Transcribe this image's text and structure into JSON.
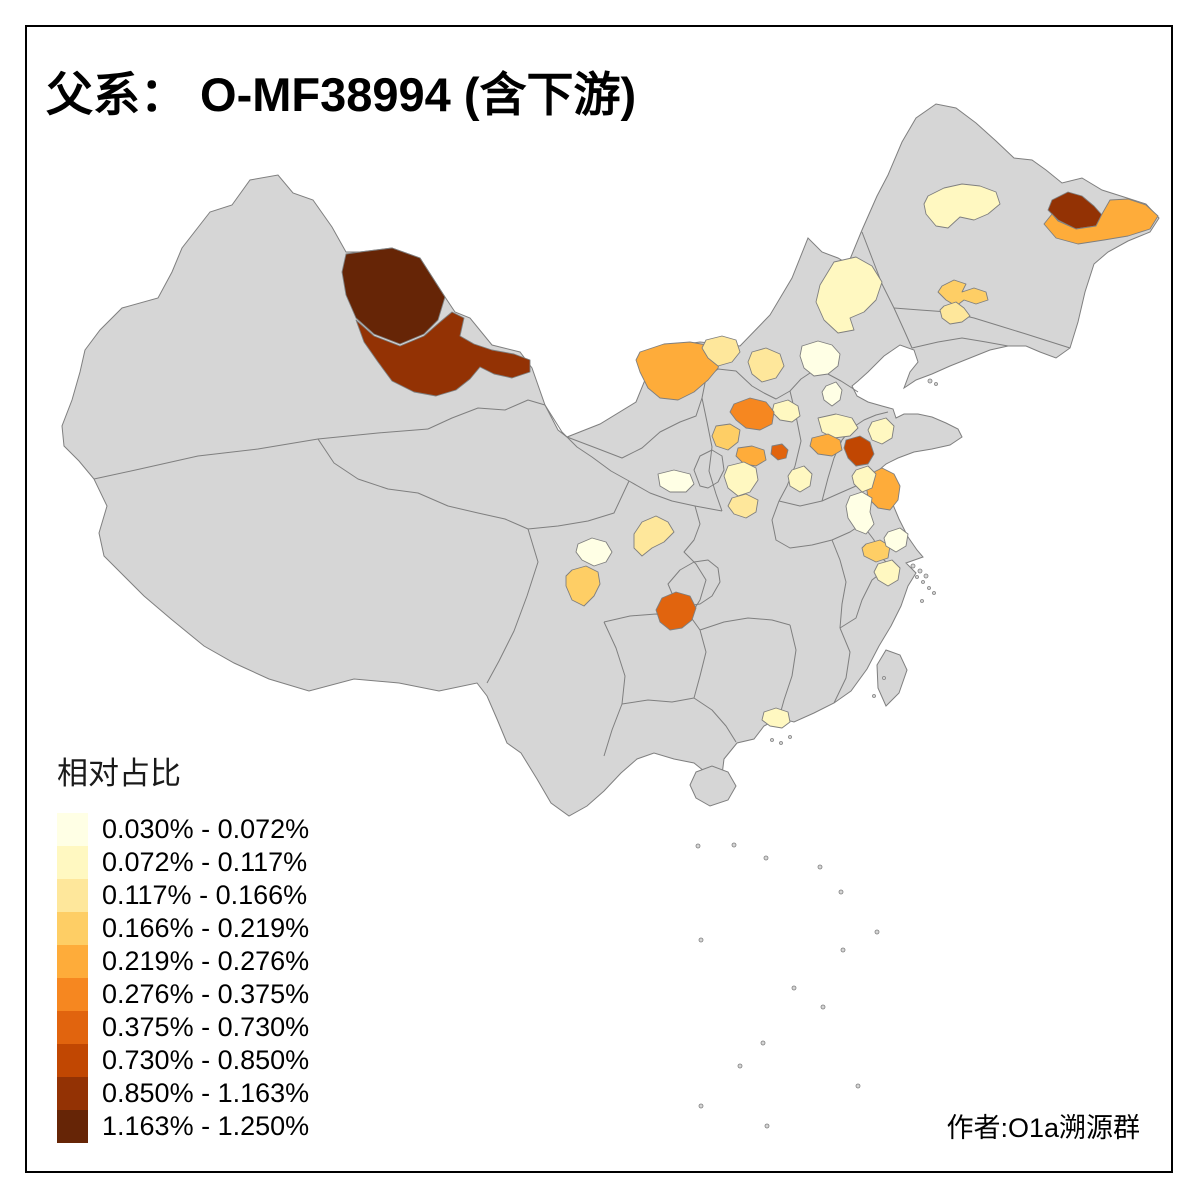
{
  "title": "父系： O-MF38994 (含下游)",
  "author": "作者:O1a溯源群",
  "legend": {
    "title": "相对占比",
    "classes": [
      {
        "label": "0.030% - 0.072%",
        "color": "#FFFFE5"
      },
      {
        "label": "0.072% - 0.117%",
        "color": "#FFF8C1"
      },
      {
        "label": "0.117% - 0.166%",
        "color": "#FEE79B"
      },
      {
        "label": "0.166% - 0.219%",
        "color": "#FECE65"
      },
      {
        "label": "0.219% - 0.276%",
        "color": "#FEAC3A"
      },
      {
        "label": "0.276% - 0.375%",
        "color": "#F68720"
      },
      {
        "label": "0.375% - 0.730%",
        "color": "#E1640E"
      },
      {
        "label": "0.730% - 0.850%",
        "color": "#C14702"
      },
      {
        "label": "0.850% - 1.163%",
        "color": "#933204"
      },
      {
        "label": "1.163% - 1.250%",
        "color": "#662506"
      }
    ]
  },
  "map": {
    "land_color": "#D6D6D6",
    "border_color": "#7F7F7F",
    "background": "#FFFFFF",
    "frame_color": "#000000",
    "regions": [
      {
        "id": "r01",
        "class": 10
      },
      {
        "id": "r02",
        "class": 9
      },
      {
        "id": "r03",
        "class": 9
      },
      {
        "id": "r04",
        "class": 5
      },
      {
        "id": "r05",
        "class": 2
      },
      {
        "id": "r06",
        "class": 4
      },
      {
        "id": "r07",
        "class": 3
      },
      {
        "id": "r08",
        "class": 2
      },
      {
        "id": "r09",
        "class": 5
      },
      {
        "id": "r10",
        "class": 3
      },
      {
        "id": "r11",
        "class": 3
      },
      {
        "id": "r12",
        "class": 1
      },
      {
        "id": "r13",
        "class": 1
      },
      {
        "id": "r14",
        "class": 2
      },
      {
        "id": "r15",
        "class": 6
      },
      {
        "id": "r16",
        "class": 4
      },
      {
        "id": "r17",
        "class": 5
      },
      {
        "id": "r18",
        "class": 7
      },
      {
        "id": "r19",
        "class": 2
      },
      {
        "id": "r20",
        "class": 3
      },
      {
        "id": "r21",
        "class": 1
      },
      {
        "id": "r22",
        "class": 2
      },
      {
        "id": "r23",
        "class": 2
      },
      {
        "id": "r24",
        "class": 5
      },
      {
        "id": "r25",
        "class": 8
      },
      {
        "id": "r26",
        "class": 2
      },
      {
        "id": "r27",
        "class": 5
      },
      {
        "id": "r28",
        "class": 2
      },
      {
        "id": "r29",
        "class": 1
      },
      {
        "id": "r30",
        "class": 4
      },
      {
        "id": "r31",
        "class": 1
      },
      {
        "id": "r32",
        "class": 2
      },
      {
        "id": "r33",
        "class": 1
      },
      {
        "id": "r34",
        "class": 4
      },
      {
        "id": "r35",
        "class": 3
      },
      {
        "id": "r36",
        "class": 7
      },
      {
        "id": "r37",
        "class": 2
      }
    ]
  }
}
